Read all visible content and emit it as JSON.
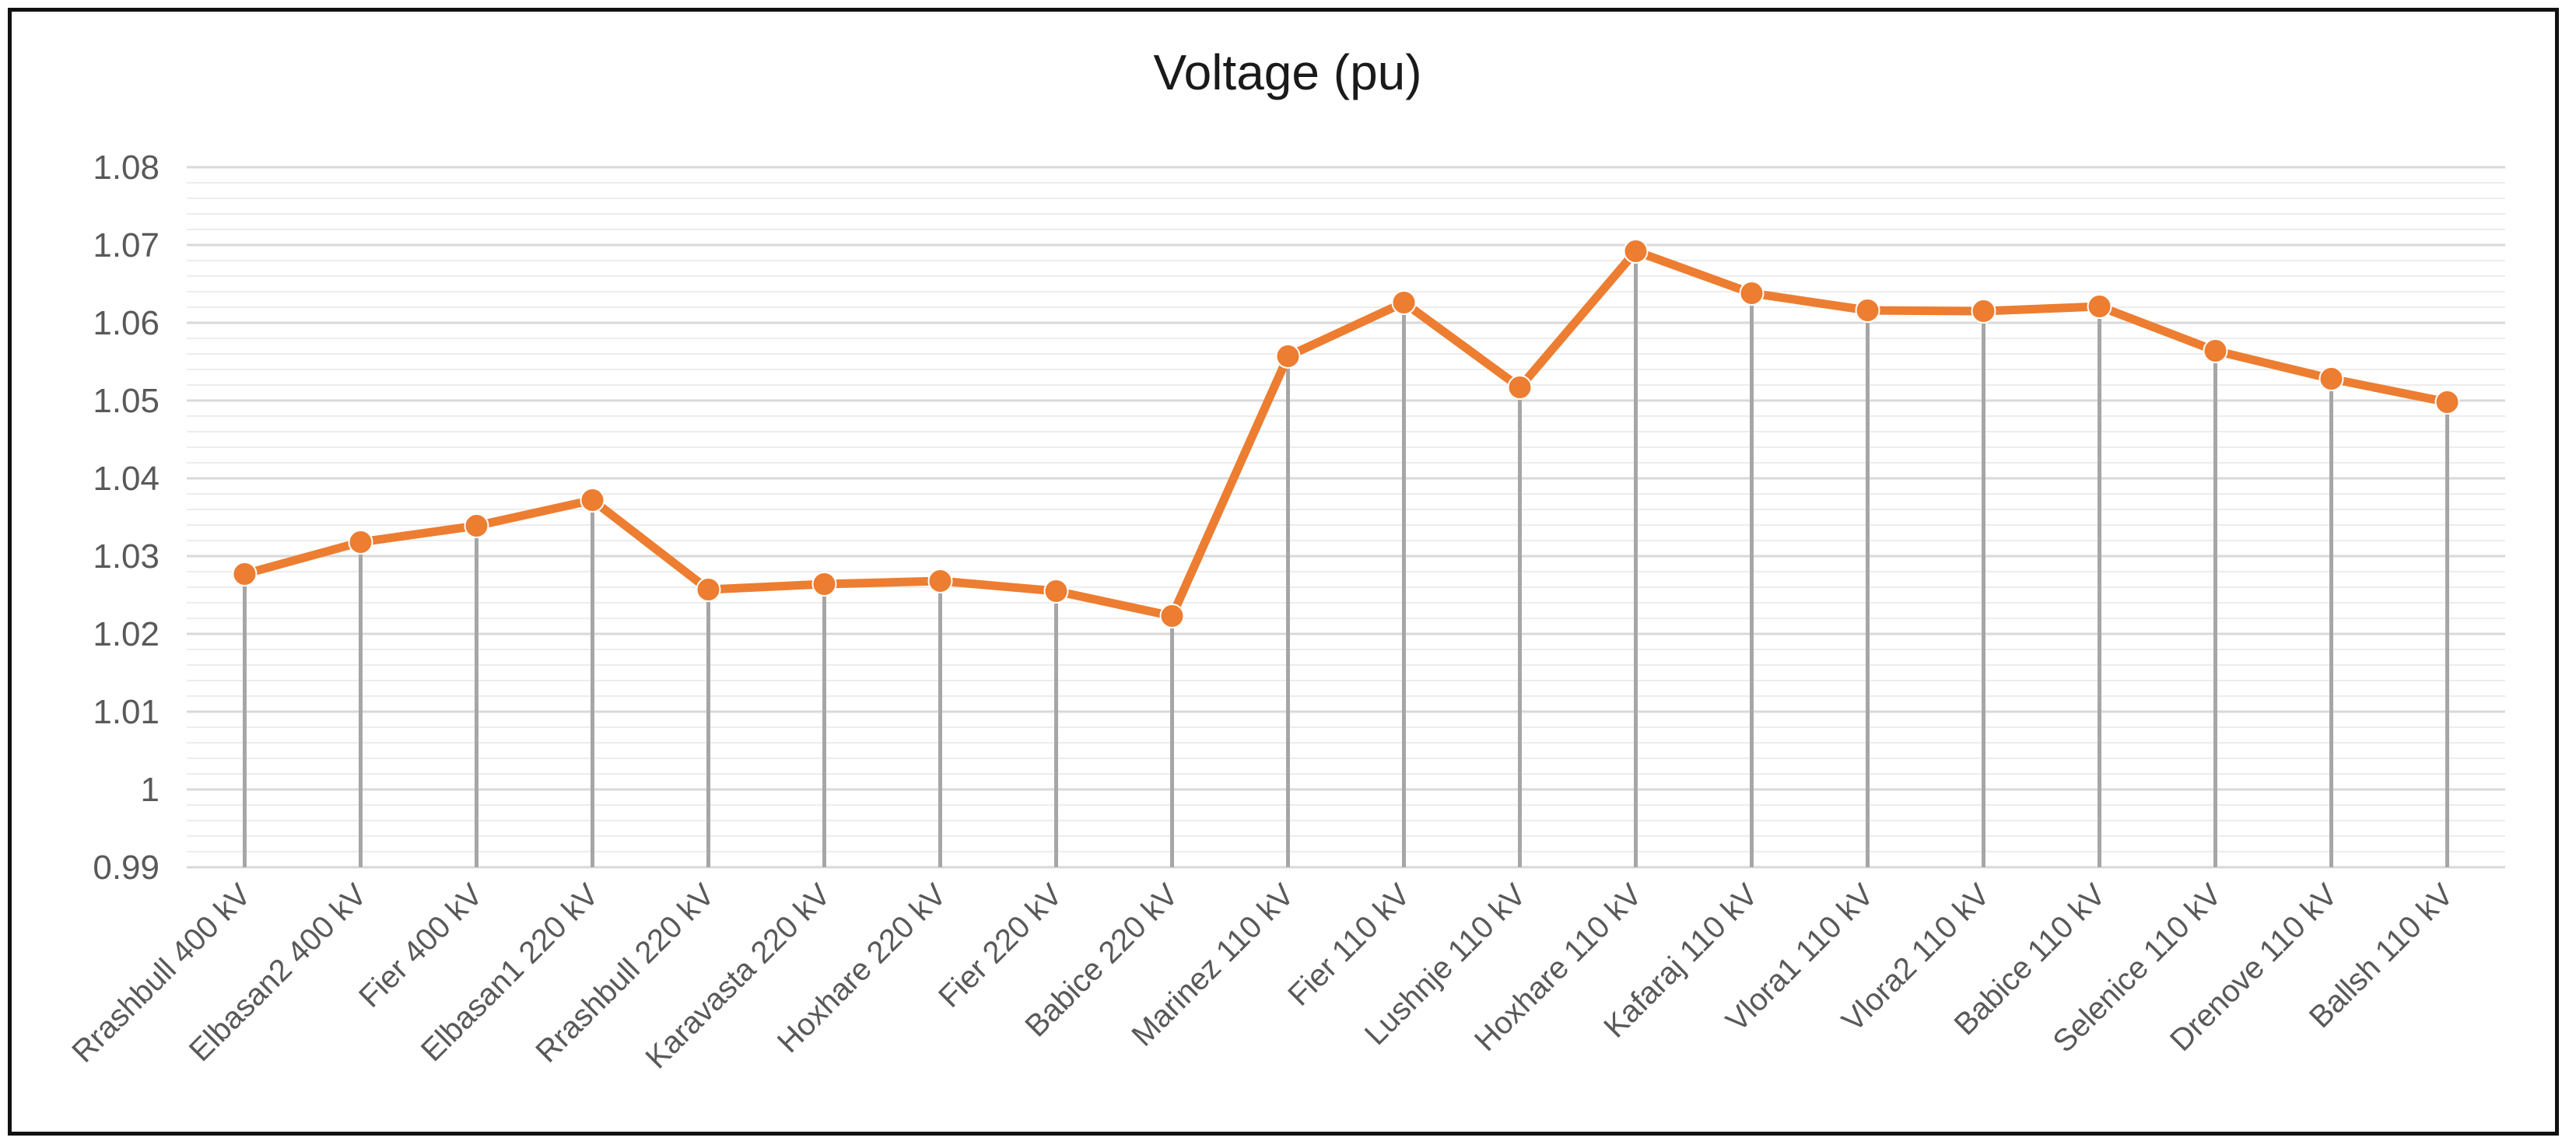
{
  "chart_data": {
    "type": "line",
    "title": "Voltage (pu)",
    "xlabel": "",
    "ylabel": "",
    "ylim": [
      0.99,
      1.08
    ],
    "y_ticks": [
      "0.99",
      "1",
      "1.01",
      "1.02",
      "1.03",
      "1.04",
      "1.05",
      "1.06",
      "1.07",
      "1.08"
    ],
    "grid": "horizontal major and minor gridlines",
    "drop_lines": true,
    "legend": "none",
    "categories": [
      "Rrashbull 400 kV",
      "Elbasan2 400 kV",
      "Fier 400 kV",
      "Elbasan1 220 kV",
      "Rrashbull 220 kV",
      "Karavasta 220 kV",
      "Hoxhare 220 kV",
      "Fier 220 kV",
      "Babice 220 kV",
      "Marinez 110 kV",
      "Fier 110 kV",
      "Lushnje 110 kV",
      "Hoxhare 110 kV",
      "Kafaraj 110 kV",
      "Vlora1 110 kV",
      "Vlora2 110 kV",
      "Babice 110 kV",
      "Selenice 110 kV",
      "Drenove 110 kV",
      "Ballsh 110 kV"
    ],
    "series": [
      {
        "values": [
          1.0277,
          1.0318,
          1.0339,
          1.0372,
          1.0257,
          1.0264,
          1.0268,
          1.0255,
          1.0223,
          1.0557,
          1.0626,
          1.0517,
          1.0692,
          1.0638,
          1.0616,
          1.0615,
          1.0621,
          1.0564,
          1.0528,
          1.0498
        ],
        "color": "#ED7D31"
      }
    ],
    "colors": {
      "line": "#ED7D31",
      "drop_line": "#A6A6A6",
      "major_grid": "#D9D9D9",
      "minor_grid": "#EDEDED",
      "axis_text": "#595959",
      "frame": "#111111"
    }
  }
}
